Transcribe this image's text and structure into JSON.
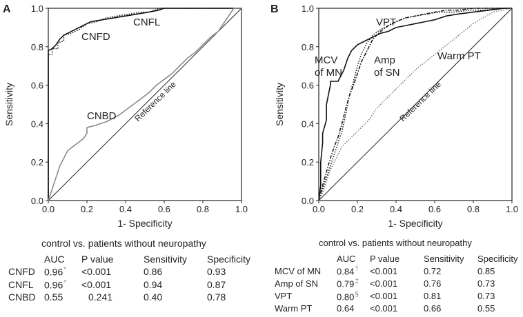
{
  "chart_data": [
    {
      "type": "line",
      "panel": "A",
      "xlabel": "1- Specificity",
      "ylabel": "Sensitivity",
      "xlim": [
        0,
        1
      ],
      "ylim": [
        0,
        1
      ],
      "xticks": [
        "0.0",
        "0.2",
        "0.4",
        "0.6",
        "0.8",
        "1.0"
      ],
      "yticks": [
        "0.0",
        "0.2",
        "0.4",
        "0.6",
        "0.8",
        "1.0"
      ],
      "reference_label": "Reference line",
      "series": [
        {
          "name": "CNFD",
          "label": "CNFD",
          "style": "dotted",
          "color": "#111111",
          "x": [
            0,
            0,
            0.02,
            0.02,
            0.05,
            0.05,
            0.08,
            0.08,
            0.12,
            0.16,
            0.2,
            0.25,
            0.3,
            0.36,
            0.42,
            0.48,
            0.52,
            0.55,
            0.58,
            1.0
          ],
          "y": [
            0,
            0.76,
            0.76,
            0.79,
            0.79,
            0.82,
            0.83,
            0.86,
            0.87,
            0.89,
            0.92,
            0.93,
            0.95,
            0.96,
            0.97,
            0.98,
            0.98,
            0.99,
            1.0,
            1.0
          ]
        },
        {
          "name": "CNFL",
          "label": "CNFL",
          "style": "solid",
          "color": "#111111",
          "x": [
            0,
            0,
            0.02,
            0.04,
            0.06,
            0.08,
            0.1,
            0.14,
            0.18,
            0.22,
            0.28,
            0.34,
            0.4,
            0.46,
            0.52,
            0.57,
            0.6,
            1.0
          ],
          "y": [
            0,
            0.78,
            0.79,
            0.81,
            0.84,
            0.86,
            0.87,
            0.89,
            0.91,
            0.93,
            0.94,
            0.95,
            0.96,
            0.97,
            0.98,
            0.99,
            1.0,
            1.0
          ]
        },
        {
          "name": "CNBD",
          "label": "CNBD",
          "style": "solid",
          "color": "#8a8a8a",
          "x": [
            0,
            0.02,
            0.04,
            0.06,
            0.08,
            0.1,
            0.14,
            0.18,
            0.2,
            0.2,
            0.24,
            0.3,
            0.34,
            0.36,
            0.4,
            0.44,
            0.48,
            0.52,
            0.56,
            0.6,
            0.64,
            0.68,
            0.72,
            0.76,
            0.8,
            0.84,
            0.88,
            0.9,
            0.94,
            0.96,
            1.0
          ],
          "y": [
            0,
            0.06,
            0.12,
            0.18,
            0.22,
            0.26,
            0.29,
            0.32,
            0.35,
            0.38,
            0.39,
            0.41,
            0.43,
            0.44,
            0.47,
            0.5,
            0.53,
            0.56,
            0.6,
            0.63,
            0.66,
            0.7,
            0.74,
            0.77,
            0.81,
            0.85,
            0.88,
            0.91,
            0.97,
            1.0,
            1.0
          ]
        }
      ],
      "stats_table": {
        "title": "control vs. patients without neuropathy",
        "columns": [
          "",
          "AUC",
          "P value",
          "Sensitivity",
          "Specificity"
        ],
        "rows": [
          {
            "name": "CNFD",
            "auc": "0.96",
            "marker": "*",
            "p": "<0.001",
            "sens": "0.86",
            "spec": "0.93"
          },
          {
            "name": "CNFL",
            "auc": "0.96",
            "marker": "*",
            "p": "<0.001",
            "sens": "0.94",
            "spec": "0.87"
          },
          {
            "name": "CNBD",
            "auc": "0.55",
            "marker": "",
            "p": "0.241",
            "sens": "0.40",
            "spec": "0.78"
          }
        ]
      }
    },
    {
      "type": "line",
      "panel": "B",
      "xlabel": "1- Specificity",
      "ylabel": "Sensitivity",
      "xlim": [
        0,
        1
      ],
      "ylim": [
        0,
        1
      ],
      "xticks": [
        "0.0",
        "0.2",
        "0.4",
        "0.6",
        "0.8",
        "1.0"
      ],
      "yticks": [
        "0.0",
        "0.2",
        "0.4",
        "0.6",
        "0.8",
        "1.0"
      ],
      "reference_label": "Reference line",
      "series": [
        {
          "name": "MCV of MN",
          "label_lines": [
            "MCV",
            "of MN"
          ],
          "style": "solid",
          "color": "#111111",
          "x": [
            0,
            0.01,
            0.01,
            0.02,
            0.02,
            0.04,
            0.04,
            0.06,
            0.06,
            0.1,
            0.13,
            0.15,
            0.17,
            0.2,
            0.24,
            0.28,
            0.32,
            0.36,
            0.4,
            0.45,
            0.5,
            0.55,
            0.6,
            0.66,
            0.72,
            0.8,
            0.88,
            0.96,
            1.0
          ],
          "y": [
            0,
            0.08,
            0.2,
            0.3,
            0.35,
            0.42,
            0.5,
            0.6,
            0.62,
            0.62,
            0.68,
            0.74,
            0.78,
            0.81,
            0.83,
            0.85,
            0.87,
            0.88,
            0.9,
            0.91,
            0.92,
            0.93,
            0.94,
            0.96,
            0.97,
            0.98,
            0.99,
            1.0,
            1.0
          ]
        },
        {
          "name": "Amp of SN",
          "label_lines": [
            "Amp",
            "of SN"
          ],
          "style": "dashdot",
          "color": "#111111",
          "x": [
            0,
            0.02,
            0.04,
            0.06,
            0.08,
            0.1,
            0.12,
            0.14,
            0.16,
            0.18,
            0.2,
            0.22,
            0.25,
            0.28,
            0.32,
            0.36,
            0.4,
            0.45,
            0.5,
            0.55,
            0.6,
            0.66,
            0.72,
            0.8,
            0.9,
            1.0
          ],
          "y": [
            0,
            0.08,
            0.15,
            0.22,
            0.28,
            0.33,
            0.4,
            0.48,
            0.55,
            0.6,
            0.66,
            0.72,
            0.78,
            0.84,
            0.88,
            0.91,
            0.93,
            0.95,
            0.96,
            0.97,
            0.98,
            0.99,
            0.99,
            1.0,
            1.0,
            1.0
          ]
        },
        {
          "name": "VPT",
          "label": "VPT",
          "style": "dotted",
          "color": "#111111",
          "x": [
            0,
            0.02,
            0.04,
            0.06,
            0.08,
            0.1,
            0.12,
            0.14,
            0.16,
            0.18,
            0.2,
            0.22,
            0.25,
            0.28,
            0.32,
            0.36,
            0.4,
            0.45,
            0.5,
            0.56,
            0.62,
            0.7,
            0.78,
            0.86,
            0.94,
            1.0
          ],
          "y": [
            0,
            0.06,
            0.12,
            0.18,
            0.24,
            0.3,
            0.36,
            0.45,
            0.55,
            0.62,
            0.7,
            0.76,
            0.82,
            0.86,
            0.89,
            0.91,
            0.93,
            0.95,
            0.96,
            0.97,
            0.98,
            0.98,
            0.99,
            0.99,
            1.0,
            1.0
          ]
        },
        {
          "name": "Warm PT",
          "label": "Warm PT",
          "style": "dotted",
          "color": "#777777",
          "x": [
            0,
            0.02,
            0.04,
            0.06,
            0.08,
            0.1,
            0.12,
            0.15,
            0.18,
            0.22,
            0.26,
            0.3,
            0.34,
            0.38,
            0.42,
            0.46,
            0.5,
            0.55,
            0.6,
            0.65,
            0.7,
            0.75,
            0.8,
            0.85,
            0.9,
            0.95,
            1.0
          ],
          "y": [
            0,
            0.04,
            0.1,
            0.16,
            0.2,
            0.24,
            0.28,
            0.31,
            0.34,
            0.38,
            0.42,
            0.48,
            0.52,
            0.56,
            0.6,
            0.64,
            0.68,
            0.72,
            0.76,
            0.8,
            0.84,
            0.88,
            0.92,
            0.95,
            0.98,
            0.99,
            1.0
          ]
        }
      ],
      "stats_table": {
        "title": "control vs. patients without neuropathy",
        "columns": [
          "",
          "AUC",
          "P value",
          "Sensitivity",
          "Specificity"
        ],
        "rows": [
          {
            "name": "MCV of MN",
            "auc": "0.84",
            "marker": "†",
            "p": "<0.001",
            "sens": "0.72",
            "spec": "0.85"
          },
          {
            "name": "Amp of SN",
            "auc": "0.79",
            "marker": "‡",
            "p": "<0.001",
            "sens": "0.76",
            "spec": "0.73"
          },
          {
            "name": "VPT",
            "auc": "0.80",
            "marker": "§",
            "p": "<0.001",
            "sens": "0.81",
            "spec": "0.73"
          },
          {
            "name": "Warm PT",
            "auc": "0.64",
            "marker": "",
            "p": "<0.001",
            "sens": "0.66",
            "spec": "0.55"
          }
        ]
      }
    }
  ]
}
